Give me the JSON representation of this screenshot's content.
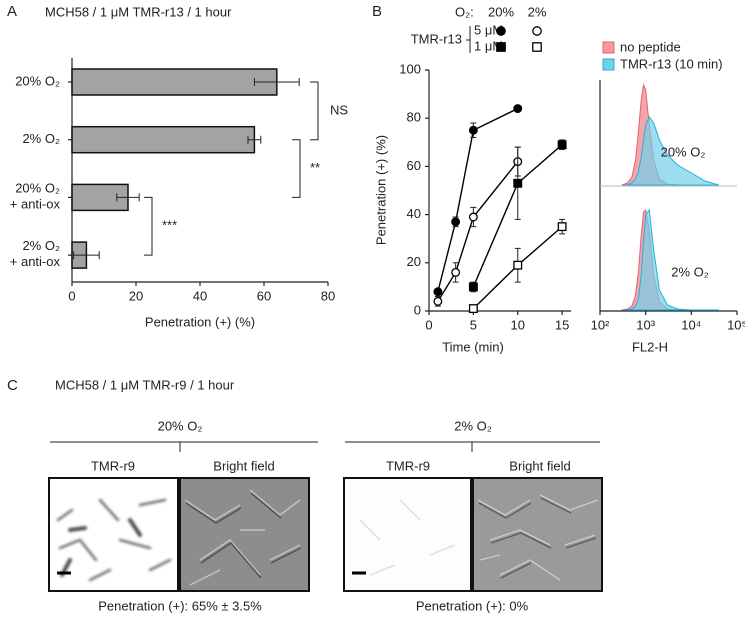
{
  "chart_data": [
    {
      "type": "hbar",
      "panel_label": "A",
      "title": "MCH58 / 1 μM TMR-r13 / 1 hour",
      "categories": [
        "20% O₂",
        "2% O₂",
        "20% O₂\n+ anti-ox",
        "2% O₂\n+ anti-ox"
      ],
      "values": [
        64,
        57,
        17.5,
        4.5
      ],
      "errors": [
        7,
        2,
        3.5,
        4
      ],
      "color": "#a3a3a3",
      "xlim": [
        0,
        80
      ],
      "xticks": [
        0,
        20,
        40,
        60,
        80
      ],
      "xlabel": "Penetration (+)   (%)",
      "significance": [
        "NS",
        "**",
        "***"
      ]
    },
    {
      "type": "line",
      "panel_label": "B",
      "legend": {
        "title": "O₂:",
        "columns": [
          "20%",
          "2%"
        ],
        "group": "TMR-r13",
        "rows": [
          "5 μM",
          "1 μM"
        ]
      },
      "color": "#000000",
      "series": [
        {
          "marker": "circle",
          "filled": true,
          "x": [
            1,
            3,
            5,
            10
          ],
          "values": [
            8,
            37,
            75,
            84
          ],
          "errors": [
            1,
            2,
            3,
            0.5
          ]
        },
        {
          "marker": "circle",
          "filled": false,
          "x": [
            1,
            3,
            5,
            10
          ],
          "values": [
            4,
            16,
            39,
            62
          ],
          "errors": [
            2,
            4,
            4,
            6
          ]
        },
        {
          "marker": "square",
          "filled": true,
          "x": [
            5,
            10,
            15
          ],
          "values": [
            10,
            53,
            69
          ],
          "errors": [
            2,
            15,
            2
          ]
        },
        {
          "marker": "square",
          "filled": false,
          "x": [
            5,
            10,
            15
          ],
          "values": [
            1,
            19,
            35
          ],
          "errors": [
            1,
            7,
            3
          ]
        }
      ],
      "xlim": [
        0,
        16
      ],
      "xticks": [
        0,
        5,
        10,
        15
      ],
      "ylim": [
        0,
        100
      ],
      "yticks": [
        0,
        20,
        40,
        60,
        80,
        100
      ],
      "xlabel": "Time (min)",
      "ylabel": "Penetration (+)   (%)"
    },
    {
      "type": "flow",
      "log_x": true,
      "x": [
        300,
        400,
        500,
        600,
        700,
        800,
        900,
        1000,
        1200,
        1500,
        2000,
        3000,
        5000,
        10000,
        20000,
        40000
      ],
      "xlim": [
        100,
        100000
      ],
      "xticks": [
        {
          "value": 100,
          "label": "10²"
        },
        {
          "value": 1000,
          "label": "10³"
        },
        {
          "value": 10000,
          "label": "10⁴"
        },
        {
          "value": 100000,
          "label": "10⁵"
        }
      ],
      "xlabel": "FL2-H",
      "ylim": [
        0,
        100
      ],
      "legend_items": [
        {
          "name": "no peptide",
          "color": "#f59aa3",
          "edge": "#e5606c"
        },
        {
          "name": "TMR-r13 (10 min)",
          "color": "#72d0ea",
          "edge": "#21b1dc"
        }
      ],
      "panels": [
        {
          "label": "20% O₂",
          "series": [
            {
              "values": [
                0,
                2,
                8,
                25,
                55,
                85,
                100,
                95,
                60,
                25,
                6,
                1,
                0,
                0,
                0,
                0
              ]
            },
            {
              "values": [
                0,
                0,
                2,
                6,
                14,
                28,
                45,
                60,
                68,
                62,
                45,
                30,
                20,
                12,
                4,
                0
              ]
            }
          ]
        },
        {
          "label": "2% O₂",
          "series": [
            {
              "values": [
                0,
                1,
                4,
                15,
                40,
                75,
                98,
                100,
                80,
                35,
                8,
                1,
                0,
                0,
                0,
                0
              ]
            },
            {
              "values": [
                0,
                0,
                1,
                4,
                12,
                35,
                70,
                95,
                100,
                60,
                20,
                5,
                1,
                0,
                0,
                0
              ]
            }
          ]
        }
      ]
    }
  ],
  "panel_c": {
    "label": "C",
    "title": "MCH58 / 1 μM TMR-r9 / 1 hour",
    "groups": [
      {
        "header": "20% O₂",
        "columns": [
          "TMR-r9",
          "Bright field"
        ],
        "caption": "Penetration (+): 65% ± 3.5%"
      },
      {
        "header": "2% O₂",
        "columns": [
          "TMR-r9",
          "Bright field"
        ],
        "caption": "Penetration (+): 0%"
      }
    ]
  }
}
